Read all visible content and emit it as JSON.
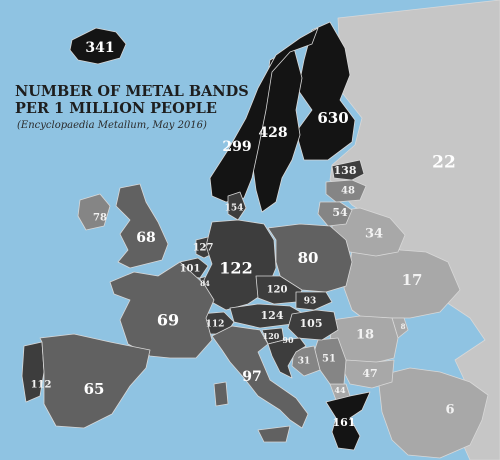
{
  "title": {
    "line1": "NUMBER OF METAL BANDS",
    "line2": "PER 1 MILLION PEOPLE",
    "source": "(Encyclopaedia Metallum, May 2016)"
  },
  "colors": {
    "sea": "#8fc3e2",
    "black": "#141414",
    "dark": "#3d3d3d",
    "mid": "#616161",
    "gray": "#858585",
    "light": "#a8a8a8",
    "pale": "#c6c6c6",
    "text_light": "#ffffff",
    "text_dark": "#f2f2f2"
  },
  "countries": [
    {
      "key": "iceland",
      "label": "341"
    },
    {
      "key": "norway",
      "label": "299"
    },
    {
      "key": "sweden",
      "label": "428"
    },
    {
      "key": "finland",
      "label": "630"
    },
    {
      "key": "russia",
      "label": "22"
    },
    {
      "key": "estonia",
      "label": "138"
    },
    {
      "key": "latvia",
      "label": "48"
    },
    {
      "key": "lithuania",
      "label": "54"
    },
    {
      "key": "belarus",
      "label": "34"
    },
    {
      "key": "ukraine",
      "label": "17"
    },
    {
      "key": "ireland",
      "label": "78"
    },
    {
      "key": "uk",
      "label": "68"
    },
    {
      "key": "denmark",
      "label": "154"
    },
    {
      "key": "netherlands",
      "label": "127"
    },
    {
      "key": "belgium",
      "label": "101"
    },
    {
      "key": "luxembourg",
      "label": "84"
    },
    {
      "key": "germany",
      "label": "122"
    },
    {
      "key": "poland",
      "label": "80"
    },
    {
      "key": "czechia",
      "label": "120"
    },
    {
      "key": "slovakia",
      "label": "93"
    },
    {
      "key": "austria",
      "label": "124"
    },
    {
      "key": "hungary",
      "label": "105"
    },
    {
      "key": "switzerland",
      "label": "112"
    },
    {
      "key": "slovenia",
      "label": "120"
    },
    {
      "key": "croatia",
      "label": "90"
    },
    {
      "key": "bosnia",
      "label": "31"
    },
    {
      "key": "serbia",
      "label": "51"
    },
    {
      "key": "romania",
      "label": "18"
    },
    {
      "key": "moldova",
      "label": "8"
    },
    {
      "key": "bulgaria",
      "label": "47"
    },
    {
      "key": "macedonia",
      "label": "44"
    },
    {
      "key": "greece",
      "label": "161"
    },
    {
      "key": "turkey",
      "label": "6"
    },
    {
      "key": "france",
      "label": "69"
    },
    {
      "key": "italy",
      "label": "97"
    },
    {
      "key": "spain",
      "label": "65"
    },
    {
      "key": "portugal",
      "label": "112"
    }
  ]
}
